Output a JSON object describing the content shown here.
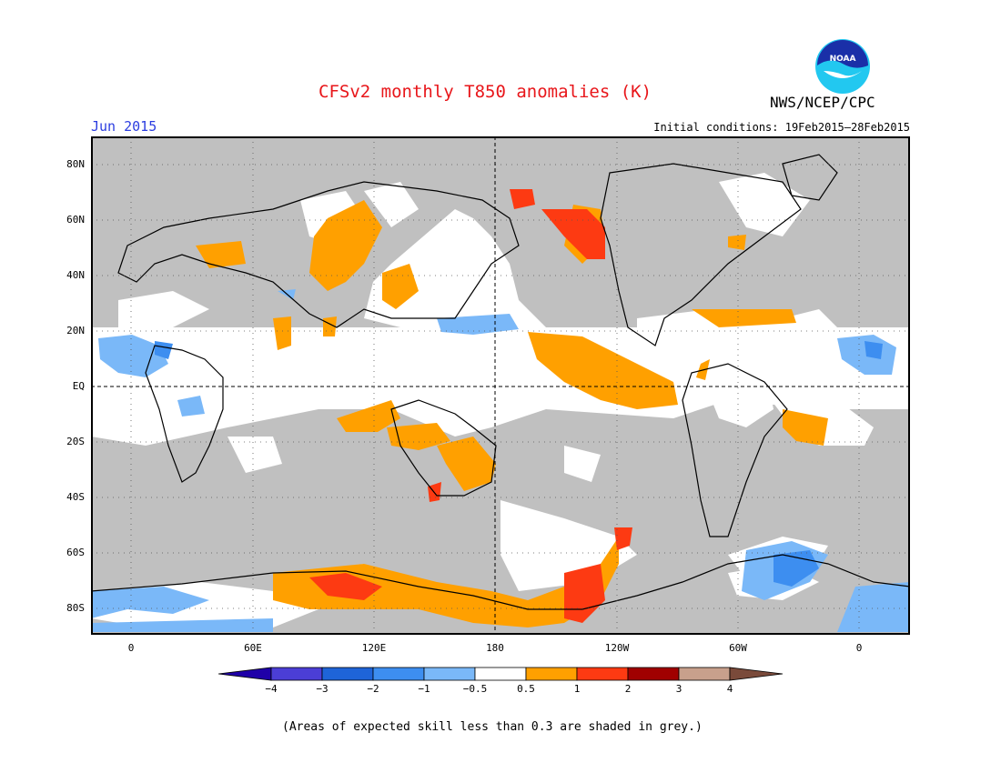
{
  "title": "CFSv2 monthly T850 anomalies (K)",
  "agency": "NWS/NCEP/CPC",
  "logo_text": "NOAA",
  "month": "Jun 2015",
  "initial_conditions": "Initial conditions: 19Feb2015–28Feb2015",
  "lat_labels": [
    "80N",
    "60N",
    "40N",
    "20N",
    "EQ",
    "20S",
    "40S",
    "60S",
    "80S"
  ],
  "lon_labels": [
    "0",
    "60E",
    "120E",
    "180",
    "120W",
    "60W",
    "0"
  ],
  "colorbar_labels": [
    "−4",
    "−3",
    "−2",
    "−1",
    "−0.5",
    "0.5",
    "1",
    "2",
    "3",
    "4"
  ],
  "colorbar_colors": [
    "#1f00a8",
    "#4b3ed6",
    "#1e64d8",
    "#3d8ef0",
    "#7ab8f8",
    "#ffffff",
    "#ffa000",
    "#fd3a12",
    "#a00000",
    "#c8a08c",
    "#7a4a3a"
  ],
  "footnote": "(Areas of expected skill less than 0.3 are shaded in grey.)",
  "colors": {
    "title": "#e8161a",
    "month": "#2b3de0",
    "skill_grey": "#c0c0c0"
  }
}
